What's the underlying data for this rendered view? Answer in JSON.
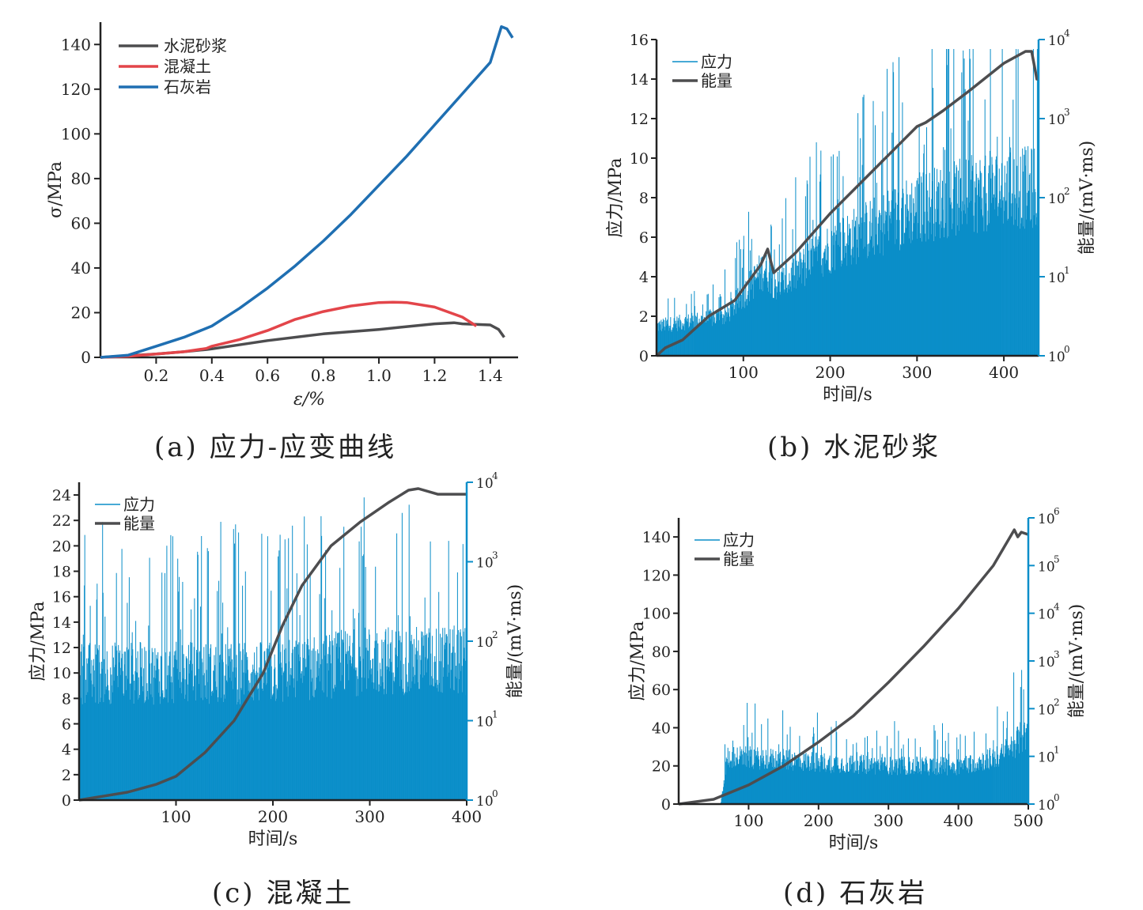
{
  "colors": {
    "axis": "#222222",
    "gray": "#4d4d4f",
    "red": "#e3454a",
    "blue": "#1f6fb2",
    "cyan": "#0a8ec9"
  },
  "captions": {
    "a": "(a) 应力-应变曲线",
    "b": "(b) 水泥砂浆",
    "c": "(c) 混凝土",
    "d": "(d) 石灰岩"
  },
  "chart_data": [
    {
      "id": "a",
      "type": "line",
      "xlabel": "ε/%",
      "ylabel": "σ/MPa",
      "xlim": [
        0,
        1.5
      ],
      "ylim": [
        0,
        150
      ],
      "xticks": [
        "0.2",
        "0.4",
        "0.6",
        "0.8",
        "1.0",
        "1.2",
        "1.4"
      ],
      "yticks": [
        "0",
        "20",
        "40",
        "60",
        "80",
        "100",
        "120",
        "140"
      ],
      "legend": "top-left",
      "series": [
        {
          "name": "水泥砂浆",
          "color": "gray",
          "x": [
            0,
            0.2,
            0.3,
            0.38,
            0.4,
            0.6,
            0.8,
            1.0,
            1.2,
            1.27,
            1.3,
            1.4,
            1.43,
            1.45
          ],
          "y": [
            0,
            1.5,
            2.5,
            3.5,
            3.8,
            7.5,
            10.5,
            12.5,
            15,
            15.5,
            15,
            14.5,
            12.5,
            9
          ]
        },
        {
          "name": "混凝土",
          "color": "red",
          "x": [
            0,
            0.1,
            0.2,
            0.3,
            0.38,
            0.4,
            0.5,
            0.6,
            0.7,
            0.8,
            0.9,
            1.0,
            1.05,
            1.1,
            1.2,
            1.3,
            1.35
          ],
          "y": [
            0,
            0.5,
            1.5,
            2.5,
            4,
            5,
            8,
            12,
            17,
            20.5,
            23,
            24.5,
            24.7,
            24.5,
            22.5,
            18,
            14
          ]
        },
        {
          "name": "石灰岩",
          "color": "blue",
          "x": [
            0,
            0.1,
            0.2,
            0.3,
            0.4,
            0.5,
            0.6,
            0.7,
            0.8,
            0.9,
            1.0,
            1.1,
            1.2,
            1.3,
            1.4,
            1.44,
            1.46,
            1.48
          ],
          "y": [
            0,
            1,
            5,
            9,
            14,
            22,
            31,
            41,
            52,
            64,
            77,
            90,
            104,
            118,
            132,
            148,
            147,
            143
          ]
        }
      ]
    },
    {
      "id": "b",
      "type": "bar",
      "xlabel": "时间/s",
      "ylabel": "应力/MPa",
      "y2label": "能量/(mV·ms)",
      "xlim": [
        0,
        440
      ],
      "ylim": [
        0,
        16
      ],
      "y2lim_log10": [
        0,
        4
      ],
      "xticks": [
        "100",
        "200",
        "300",
        "400"
      ],
      "yticks": [
        "0",
        "2",
        "4",
        "6",
        "8",
        "10",
        "12",
        "14",
        "16"
      ],
      "y2ticks": [
        "10",
        "10",
        "10",
        "10",
        "10"
      ],
      "y2exp": [
        "0",
        "1",
        "2",
        "3",
        "4"
      ],
      "legend": "top-left",
      "series": [
        {
          "name": "应力",
          "color": "cyan",
          "envelope_t": [
            0,
            80,
            125,
            140,
            200,
            300,
            400,
            440
          ],
          "envelope_v": [
            1.5,
            2,
            4.5,
            3.5,
            5.5,
            7.5,
            8.5,
            8.5
          ]
        },
        {
          "name": "能量",
          "color": "gray",
          "log10_energy_t": [
            0,
            10,
            30,
            60,
            90,
            120,
            128,
            135,
            160,
            200,
            250,
            300,
            310,
            330,
            360,
            400,
            425,
            432,
            438,
            440
          ],
          "log10_energy_v": [
            0,
            0.1,
            0.2,
            0.5,
            0.7,
            1.15,
            1.35,
            1.05,
            1.3,
            1.8,
            2.35,
            2.9,
            2.95,
            3.1,
            3.35,
            3.7,
            3.85,
            3.85,
            3.5,
            3.5
          ]
        }
      ]
    },
    {
      "id": "c",
      "type": "bar",
      "xlabel": "时间/s",
      "ylabel": "应力/MPa",
      "y2label": "能量/(mV·ms)",
      "xlim": [
        0,
        400
      ],
      "ylim": [
        0,
        25
      ],
      "y2lim_log10": [
        0,
        4
      ],
      "xticks": [
        "100",
        "200",
        "300",
        "400"
      ],
      "yticks": [
        "0",
        "2",
        "4",
        "6",
        "8",
        "10",
        "12",
        "14",
        "16",
        "18",
        "20",
        "22",
        "24"
      ],
      "y2ticks": [
        "10",
        "10",
        "10",
        "10",
        "10"
      ],
      "y2exp": [
        "0",
        "1",
        "2",
        "3",
        "4"
      ],
      "legend": "top-left",
      "series": [
        {
          "name": "应力",
          "color": "cyan",
          "envelope_t": [
            0,
            100,
            200,
            300,
            400
          ],
          "envelope_v": [
            10,
            10,
            10,
            11,
            11
          ]
        },
        {
          "name": "能量",
          "color": "gray",
          "log10_energy_t": [
            0,
            50,
            80,
            100,
            130,
            160,
            190,
            210,
            230,
            260,
            290,
            320,
            340,
            350,
            370,
            390,
            400
          ],
          "log10_energy_v": [
            0,
            0.1,
            0.2,
            0.3,
            0.6,
            1.0,
            1.6,
            2.2,
            2.7,
            3.2,
            3.5,
            3.75,
            3.9,
            3.92,
            3.85,
            3.85,
            3.85
          ]
        }
      ]
    },
    {
      "id": "d",
      "type": "bar",
      "xlabel": "时间/s",
      "ylabel": "应力/MPa",
      "y2label": "能量/(mV·ms)",
      "xlim": [
        0,
        500
      ],
      "ylim": [
        0,
        150
      ],
      "y2lim_log10": [
        0,
        6
      ],
      "xticks": [
        "100",
        "200",
        "300",
        "400",
        "500"
      ],
      "yticks": [
        "0",
        "20",
        "40",
        "60",
        "80",
        "100",
        "120",
        "140"
      ],
      "y2ticks": [
        "10",
        "10",
        "10",
        "10",
        "10",
        "10",
        "10"
      ],
      "y2exp": [
        "0",
        "1",
        "2",
        "3",
        "4",
        "5",
        "6"
      ],
      "legend": "top-left",
      "series": [
        {
          "name": "应力",
          "color": "cyan",
          "envelope_t": [
            0,
            60,
            70,
            200,
            300,
            400,
            460,
            490
          ],
          "envelope_v": [
            0,
            0,
            25,
            22,
            20,
            20,
            25,
            35
          ]
        },
        {
          "name": "能量",
          "color": "gray",
          "log10_energy_t": [
            0,
            50,
            100,
            150,
            200,
            250,
            300,
            350,
            400,
            450,
            480,
            485,
            490,
            500
          ],
          "log10_energy_v": [
            0,
            0.1,
            0.4,
            0.8,
            1.3,
            1.85,
            2.55,
            3.3,
            4.1,
            5.0,
            5.75,
            5.6,
            5.7,
            5.65
          ]
        }
      ]
    }
  ]
}
